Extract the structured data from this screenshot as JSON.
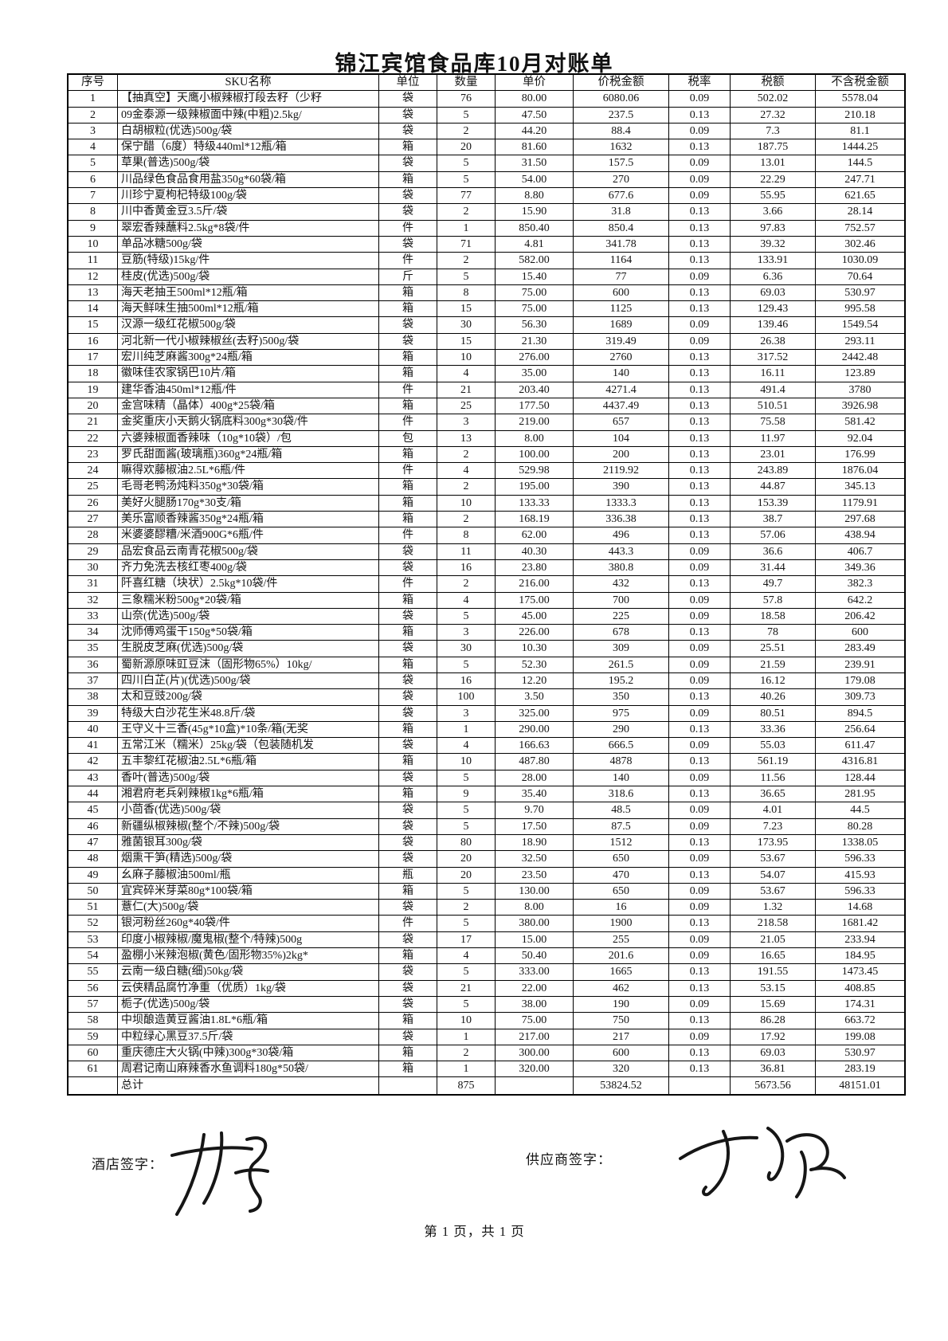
{
  "page": {
    "title": "锦江宾馆食品库10月对账单",
    "footer": "第 1 页，共 1 页"
  },
  "signatures": {
    "hotel_label": "酒店签字：",
    "supplier_label": "供应商签字："
  },
  "table": {
    "columns": [
      "序号",
      "SKU名称",
      "单位",
      "数量",
      "单价",
      "价税金额",
      "税率",
      "税额",
      "不含税金额"
    ],
    "column_keys": [
      "no",
      "sku-name",
      "unit",
      "qty",
      "unit-price",
      "amount-with-tax",
      "tax-rate",
      "tax-amount",
      "amount-without-tax"
    ],
    "rows": [
      [
        "1",
        "【抽真空】天鹰小椒辣椒打段去籽（少籽",
        "袋",
        "76",
        "80.00",
        "6080.06",
        "0.09",
        "502.02",
        "5578.04"
      ],
      [
        "2",
        "09金泰源一级辣椒面中辣(中粗)2.5kg/",
        "袋",
        "5",
        "47.50",
        "237.5",
        "0.13",
        "27.32",
        "210.18"
      ],
      [
        "3",
        "白胡椒粒(优选)500g/袋",
        "袋",
        "2",
        "44.20",
        "88.4",
        "0.09",
        "7.3",
        "81.1"
      ],
      [
        "4",
        "保宁醋（6度）特级440ml*12瓶/箱",
        "箱",
        "20",
        "81.60",
        "1632",
        "0.13",
        "187.75",
        "1444.25"
      ],
      [
        "5",
        "草果(普选)500g/袋",
        "袋",
        "5",
        "31.50",
        "157.5",
        "0.09",
        "13.01",
        "144.5"
      ],
      [
        "6",
        "川品绿色食品食用盐350g*60袋/箱",
        "箱",
        "5",
        "54.00",
        "270",
        "0.09",
        "22.29",
        "247.71"
      ],
      [
        "7",
        "川珍宁夏枸杞特级100g/袋",
        "袋",
        "77",
        "8.80",
        "677.6",
        "0.09",
        "55.95",
        "621.65"
      ],
      [
        "8",
        "川中香黄金豆3.5斤/袋",
        "袋",
        "2",
        "15.90",
        "31.8",
        "0.13",
        "3.66",
        "28.14"
      ],
      [
        "9",
        "翠宏香辣蘸料2.5kg*8袋/件",
        "件",
        "1",
        "850.40",
        "850.4",
        "0.13",
        "97.83",
        "752.57"
      ],
      [
        "10",
        "单品冰糖500g/袋",
        "袋",
        "71",
        "4.81",
        "341.78",
        "0.13",
        "39.32",
        "302.46"
      ],
      [
        "11",
        "豆筋(特级)15kg/件",
        "件",
        "2",
        "582.00",
        "1164",
        "0.13",
        "133.91",
        "1030.09"
      ],
      [
        "12",
        "桂皮(优选)500g/袋",
        "斤",
        "5",
        "15.40",
        "77",
        "0.09",
        "6.36",
        "70.64"
      ],
      [
        "13",
        "海天老抽王500ml*12瓶/箱",
        "箱",
        "8",
        "75.00",
        "600",
        "0.13",
        "69.03",
        "530.97"
      ],
      [
        "14",
        "海天鲜味生抽500ml*12瓶/箱",
        "箱",
        "15",
        "75.00",
        "1125",
        "0.13",
        "129.43",
        "995.58"
      ],
      [
        "15",
        "汉源一级红花椒500g/袋",
        "袋",
        "30",
        "56.30",
        "1689",
        "0.09",
        "139.46",
        "1549.54"
      ],
      [
        "16",
        "河北新一代小椒辣椒丝(去籽)500g/袋",
        "袋",
        "15",
        "21.30",
        "319.49",
        "0.09",
        "26.38",
        "293.11"
      ],
      [
        "17",
        "宏川纯芝麻酱300g*24瓶/箱",
        "箱",
        "10",
        "276.00",
        "2760",
        "0.13",
        "317.52",
        "2442.48"
      ],
      [
        "18",
        "徽味佳农家锅巴10片/箱",
        "箱",
        "4",
        "35.00",
        "140",
        "0.13",
        "16.11",
        "123.89"
      ],
      [
        "19",
        "建华香油450ml*12瓶/件",
        "件",
        "21",
        "203.40",
        "4271.4",
        "0.13",
        "491.4",
        "3780"
      ],
      [
        "20",
        "金宫味精（晶体）400g*25袋/箱",
        "箱",
        "25",
        "177.50",
        "4437.49",
        "0.13",
        "510.51",
        "3926.98"
      ],
      [
        "21",
        "金奖重庆小天鹅火锅底料300g*30袋/件",
        "件",
        "3",
        "219.00",
        "657",
        "0.13",
        "75.58",
        "581.42"
      ],
      [
        "22",
        "六婆辣椒面香辣味（10g*10袋）/包",
        "包",
        "13",
        "8.00",
        "104",
        "0.13",
        "11.97",
        "92.04"
      ],
      [
        "23",
        "罗氏甜面酱(玻璃瓶)360g*24瓶/箱",
        "箱",
        "2",
        "100.00",
        "200",
        "0.13",
        "23.01",
        "176.99"
      ],
      [
        "24",
        "嘛得欢藤椒油2.5L*6瓶/件",
        "件",
        "4",
        "529.98",
        "2119.92",
        "0.13",
        "243.89",
        "1876.04"
      ],
      [
        "25",
        "毛哥老鸭汤炖料350g*30袋/箱",
        "箱",
        "2",
        "195.00",
        "390",
        "0.13",
        "44.87",
        "345.13"
      ],
      [
        "26",
        "美好火腿肠170g*30支/箱",
        "箱",
        "10",
        "133.33",
        "1333.3",
        "0.13",
        "153.39",
        "1179.91"
      ],
      [
        "27",
        "美乐富顺香辣酱350g*24瓶/箱",
        "箱",
        "2",
        "168.19",
        "336.38",
        "0.13",
        "38.7",
        "297.68"
      ],
      [
        "28",
        "米婆婆醪糟/米酒900G*6瓶/件",
        "件",
        "8",
        "62.00",
        "496",
        "0.13",
        "57.06",
        "438.94"
      ],
      [
        "29",
        "品宏食品云南青花椒500g/袋",
        "袋",
        "11",
        "40.30",
        "443.3",
        "0.09",
        "36.6",
        "406.7"
      ],
      [
        "30",
        "齐力免洗去核红枣400g/袋",
        "袋",
        "16",
        "23.80",
        "380.8",
        "0.09",
        "31.44",
        "349.36"
      ],
      [
        "31",
        "阡喜红糖（块状）2.5kg*10袋/件",
        "件",
        "2",
        "216.00",
        "432",
        "0.13",
        "49.7",
        "382.3"
      ],
      [
        "32",
        "三象糯米粉500g*20袋/箱",
        "箱",
        "4",
        "175.00",
        "700",
        "0.09",
        "57.8",
        "642.2"
      ],
      [
        "33",
        "山奈(优选)500g/袋",
        "袋",
        "5",
        "45.00",
        "225",
        "0.09",
        "18.58",
        "206.42"
      ],
      [
        "34",
        "沈师傅鸡蛋干150g*50袋/箱",
        "箱",
        "3",
        "226.00",
        "678",
        "0.13",
        "78",
        "600"
      ],
      [
        "35",
        "生脱皮芝麻(优选)500g/袋",
        "袋",
        "30",
        "10.30",
        "309",
        "0.09",
        "25.51",
        "283.49"
      ],
      [
        "36",
        "蜀新源原味豇豆沫（固形物65%）10kg/",
        "箱",
        "5",
        "52.30",
        "261.5",
        "0.09",
        "21.59",
        "239.91"
      ],
      [
        "37",
        "四川白芷(片)(优选)500g/袋",
        "袋",
        "16",
        "12.20",
        "195.2",
        "0.09",
        "16.12",
        "179.08"
      ],
      [
        "38",
        "太和豆豉200g/袋",
        "袋",
        "100",
        "3.50",
        "350",
        "0.13",
        "40.26",
        "309.73"
      ],
      [
        "39",
        "特级大白沙花生米48.8斤/袋",
        "袋",
        "3",
        "325.00",
        "975",
        "0.09",
        "80.51",
        "894.5"
      ],
      [
        "40",
        "王守义十三香(45g*10盒)*10条/箱(无奖",
        "箱",
        "1",
        "290.00",
        "290",
        "0.13",
        "33.36",
        "256.64"
      ],
      [
        "41",
        "五常江米（糯米）25kg/袋（包装随机发",
        "袋",
        "4",
        "166.63",
        "666.5",
        "0.09",
        "55.03",
        "611.47"
      ],
      [
        "42",
        "五丰黎红花椒油2.5L*6瓶/箱",
        "箱",
        "10",
        "487.80",
        "4878",
        "0.13",
        "561.19",
        "4316.81"
      ],
      [
        "43",
        "香叶(普选)500g/袋",
        "袋",
        "5",
        "28.00",
        "140",
        "0.09",
        "11.56",
        "128.44"
      ],
      [
        "44",
        "湘君府老兵剁辣椒1kg*6瓶/箱",
        "箱",
        "9",
        "35.40",
        "318.6",
        "0.13",
        "36.65",
        "281.95"
      ],
      [
        "45",
        "小茴香(优选)500g/袋",
        "袋",
        "5",
        "9.70",
        "48.5",
        "0.09",
        "4.01",
        "44.5"
      ],
      [
        "46",
        "新疆纵椒辣椒(整个/不辣)500g/袋",
        "袋",
        "5",
        "17.50",
        "87.5",
        "0.09",
        "7.23",
        "80.28"
      ],
      [
        "47",
        "雅菌银耳300g/袋",
        "袋",
        "80",
        "18.90",
        "1512",
        "0.13",
        "173.95",
        "1338.05"
      ],
      [
        "48",
        "烟熏干笋(精选)500g/袋",
        "袋",
        "20",
        "32.50",
        "650",
        "0.09",
        "53.67",
        "596.33"
      ],
      [
        "49",
        "幺麻子藤椒油500ml/瓶",
        "瓶",
        "20",
        "23.50",
        "470",
        "0.13",
        "54.07",
        "415.93"
      ],
      [
        "50",
        "宜宾碎米芽菜80g*100袋/箱",
        "箱",
        "5",
        "130.00",
        "650",
        "0.09",
        "53.67",
        "596.33"
      ],
      [
        "51",
        "薏仁(大)500g/袋",
        "袋",
        "2",
        "8.00",
        "16",
        "0.09",
        "1.32",
        "14.68"
      ],
      [
        "52",
        "银河粉丝260g*40袋/件",
        "件",
        "5",
        "380.00",
        "1900",
        "0.13",
        "218.58",
        "1681.42"
      ],
      [
        "53",
        "印度小椒辣椒/魔鬼椒(整个/特辣)500g",
        "袋",
        "17",
        "15.00",
        "255",
        "0.09",
        "21.05",
        "233.94"
      ],
      [
        "54",
        "盈棚小米辣泡椒(黄色/固形物35%)2kg*",
        "箱",
        "4",
        "50.40",
        "201.6",
        "0.09",
        "16.65",
        "184.95"
      ],
      [
        "55",
        "云南一级白糖(细)50kg/袋",
        "袋",
        "5",
        "333.00",
        "1665",
        "0.13",
        "191.55",
        "1473.45"
      ],
      [
        "56",
        "云侠精品腐竹净重（优质）1kg/袋",
        "袋",
        "21",
        "22.00",
        "462",
        "0.13",
        "53.15",
        "408.85"
      ],
      [
        "57",
        "栀子(优选)500g/袋",
        "袋",
        "5",
        "38.00",
        "190",
        "0.09",
        "15.69",
        "174.31"
      ],
      [
        "58",
        "中坝酿造黄豆酱油1.8L*6瓶/箱",
        "箱",
        "10",
        "75.00",
        "750",
        "0.13",
        "86.28",
        "663.72"
      ],
      [
        "59",
        "中粒绿心黑豆37.5斤/袋",
        "袋",
        "1",
        "217.00",
        "217",
        "0.09",
        "17.92",
        "199.08"
      ],
      [
        "60",
        "重庆德庄大火锅(中辣)300g*30袋/箱",
        "箱",
        "2",
        "300.00",
        "600",
        "0.13",
        "69.03",
        "530.97"
      ],
      [
        "61",
        "周君记南山麻辣香水鱼调料180g*50袋/",
        "箱",
        "1",
        "320.00",
        "320",
        "0.13",
        "36.81",
        "283.19"
      ]
    ],
    "total_row": [
      "",
      "总计",
      "",
      "875",
      "",
      "53824.52",
      "",
      "5673.56",
      "48151.01"
    ]
  }
}
